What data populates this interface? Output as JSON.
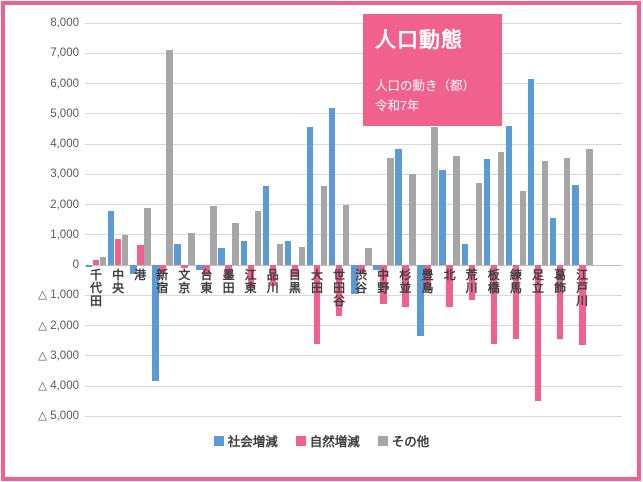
{
  "frame": {
    "border_color": "#F0618E"
  },
  "title_box": {
    "bg": "#F0618E",
    "text_color": "#FFFFFF",
    "title": "人口動態",
    "line1": "人口の動き（都）",
    "line2": "令和7年"
  },
  "legend": {
    "items": [
      {
        "label": "社会増減",
        "color": "#5B9BD5"
      },
      {
        "label": "自然増減",
        "color": "#F0618E"
      },
      {
        "label": "その他",
        "color": "#A6A6A6"
      }
    ]
  },
  "y_axis": {
    "tick_labels": [
      "8,000",
      "7,000",
      "6,000",
      "5,000",
      "4,000",
      "3,000",
      "2,000",
      "1,000",
      "0",
      "△ 1,000",
      "△ 2,000",
      "△ 3,000",
      "△ 4,000",
      "△ 5,000"
    ],
    "tick_values": [
      8000,
      7000,
      6000,
      5000,
      4000,
      3000,
      2000,
      1000,
      0,
      -1000,
      -2000,
      -3000,
      -4000,
      -5000
    ]
  },
  "chart_data": {
    "type": "bar",
    "title": "人口動態",
    "subtitle": "人口の動き（都） 令和7年",
    "grid": true,
    "legend_position": "bottom",
    "ylim": [
      -5000,
      8000
    ],
    "ytick_step": 1000,
    "negative_style": "triangle_prefix",
    "categories": [
      "千代田",
      "中央",
      "港",
      "新宿",
      "文京",
      "台東",
      "墨田",
      "江東",
      "品川",
      "目黒",
      "大田",
      "世田谷",
      "渋谷",
      "中野",
      "杉並",
      "豊島",
      "北",
      "荒川",
      "板橋",
      "練馬",
      "足立",
      "葛飾",
      "江戸川"
    ],
    "series": [
      {
        "name": "社会増減",
        "color": "#5B9BD5",
        "values": [
          -50,
          1800,
          -300,
          -3850,
          680,
          -150,
          550,
          800,
          2600,
          800,
          4550,
          5200,
          -950,
          -150,
          3850,
          -2350,
          3150,
          700,
          3500,
          4600,
          6150,
          1550,
          2650
        ]
      },
      {
        "name": "自然増減",
        "color": "#F0618E",
        "values": [
          150,
          850,
          650,
          -250,
          -100,
          -350,
          -500,
          -750,
          -700,
          -400,
          -2600,
          -1700,
          -300,
          -1300,
          -1400,
          -850,
          -1400,
          -1150,
          -2600,
          -2450,
          -4500,
          -2450,
          -2650
        ]
      },
      {
        "name": "その他",
        "color": "#A6A6A6",
        "values": [
          280,
          1000,
          1900,
          7100,
          1050,
          1950,
          1400,
          1800,
          700,
          600,
          2600,
          2000,
          570,
          3550,
          3000,
          4550,
          3600,
          2700,
          3750,
          2450,
          3450,
          3550,
          3850
        ]
      }
    ]
  }
}
